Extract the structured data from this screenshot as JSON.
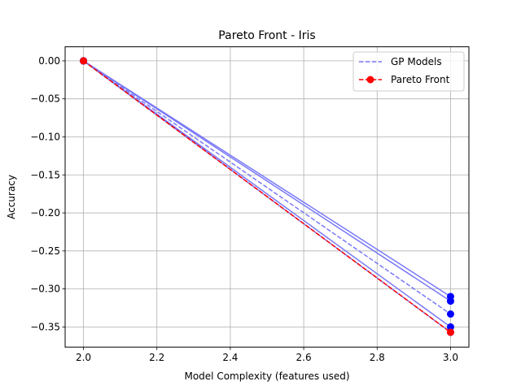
{
  "chart_data": {
    "type": "line",
    "title": "Pareto Front - Iris",
    "xlabel": "Model Complexity (features used)",
    "ylabel": "Accuracy",
    "xlim": [
      1.95,
      3.05
    ],
    "ylim": [
      -0.3765,
      0.0185
    ],
    "xticks": [
      2.0,
      2.2,
      2.4,
      2.6,
      2.8,
      3.0
    ],
    "xtick_labels": [
      "2.0",
      "2.2",
      "2.4",
      "2.6",
      "2.8",
      "3.0"
    ],
    "yticks": [
      0.0,
      -0.05,
      -0.1,
      -0.15,
      -0.2,
      -0.25,
      -0.3,
      -0.35
    ],
    "ytick_labels": [
      "0.00",
      "−0.05",
      "−0.10",
      "−0.15",
      "−0.20",
      "−0.25",
      "−0.30",
      "−0.35"
    ],
    "grid": true,
    "legend_position": "top-right",
    "colors": {
      "gp": "#7878f8",
      "gp_marker": "#0000ff",
      "pareto": "#ff0000",
      "grid": "#b0b0b0",
      "frame": "#000000"
    },
    "gp_models": [
      {
        "x": [
          2,
          3
        ],
        "y": [
          0.0,
          -0.31
        ],
        "style": "solid"
      },
      {
        "x": [
          2,
          3
        ],
        "y": [
          0.0,
          -0.316
        ],
        "style": "solid"
      },
      {
        "x": [
          2,
          3
        ],
        "y": [
          0.0,
          -0.333
        ],
        "style": "dashed"
      },
      {
        "x": [
          2,
          3
        ],
        "y": [
          0.0,
          -0.35
        ],
        "style": "solid"
      },
      {
        "x": [
          2,
          3
        ],
        "y": [
          0.0,
          -0.357
        ],
        "style": "solid"
      }
    ],
    "pareto_front": {
      "x": [
        2,
        3
      ],
      "y": [
        0.0,
        -0.357
      ]
    },
    "legend": [
      {
        "label": "GP Models",
        "kind": "gp"
      },
      {
        "label": "Pareto Front",
        "kind": "pareto"
      }
    ]
  }
}
